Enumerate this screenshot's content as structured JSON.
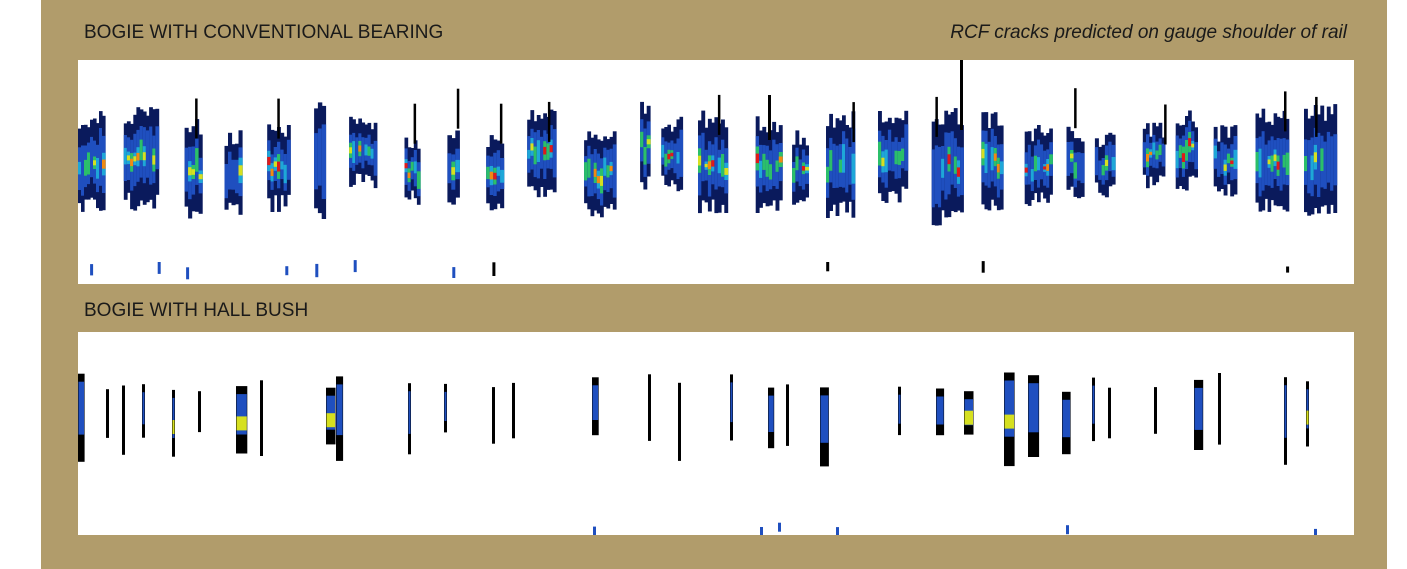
{
  "panels": [
    {
      "caption": "BOGIE WITH CONVENTIONAL BEARING",
      "note": "RCF cracks predicted on gauge shoulder of rail",
      "pattern": "dense"
    },
    {
      "caption": "BOGIE WITH HALL BUSH",
      "pattern": "sparse"
    }
  ],
  "colors": {
    "frame": "#b19c6b",
    "scale": [
      "#0a1a5c",
      "#1f4fbf",
      "#1ea7d8",
      "#2bbf6a",
      "#d6e020",
      "#f08a12",
      "#e01a1a"
    ]
  }
}
